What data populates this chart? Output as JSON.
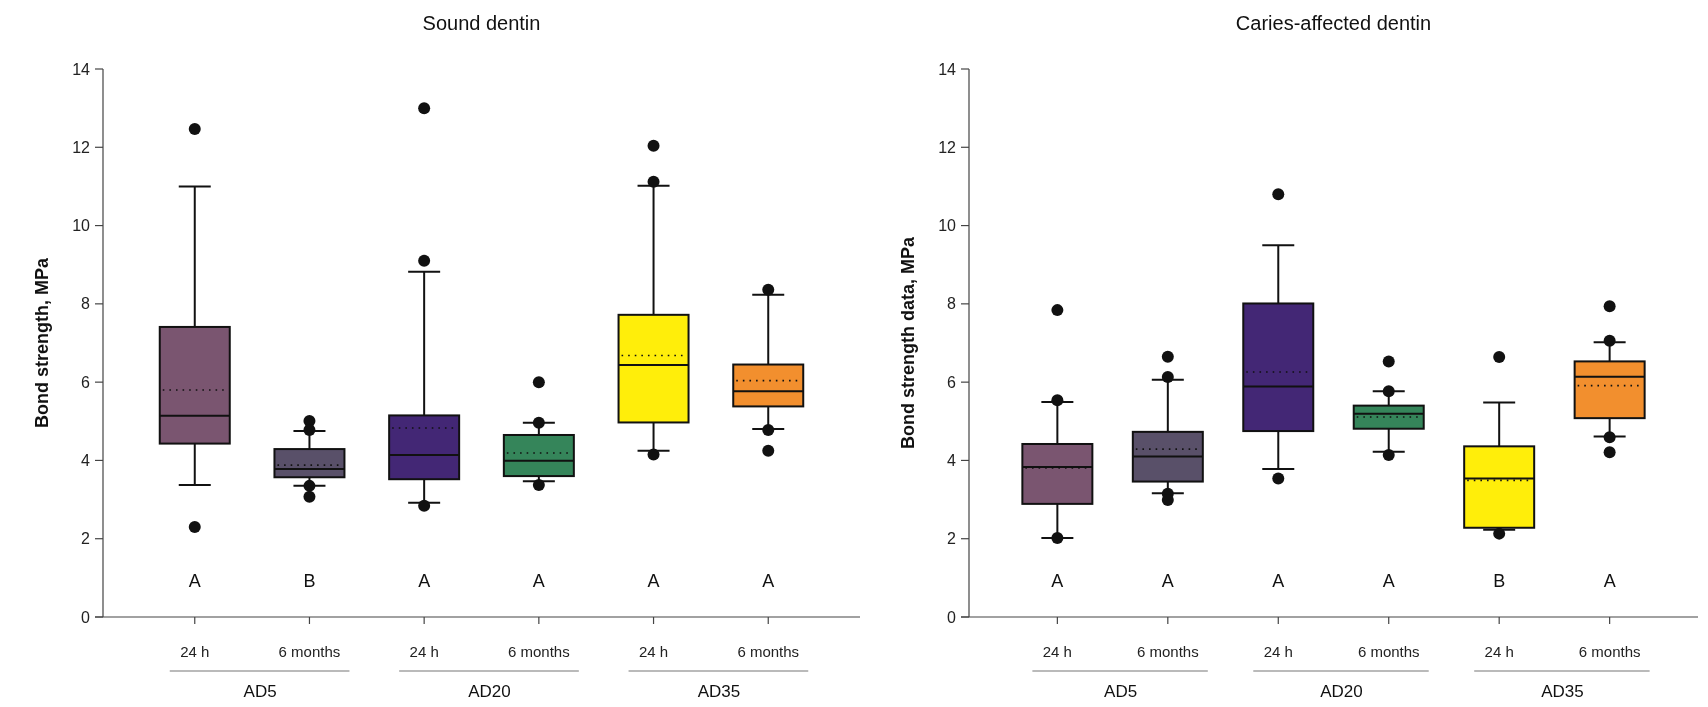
{
  "chart_data": [
    {
      "type": "box",
      "title": "Sound dentin",
      "ylabel": "Bond strength, MPa",
      "categories": [
        "24 h",
        "6 months",
        "24 h",
        "6 months",
        "24 h",
        "6 months"
      ],
      "colors": [
        "#7a5570",
        "#595069",
        "#432775",
        "#35855a",
        "#ffee0a",
        "#f28f2e"
      ],
      "boxes": [
        {
          "low": 3.37,
          "q1": 4.43,
          "median": 5.14,
          "q3": 7.41,
          "high": 11.0,
          "mean": 5.8,
          "outliers": [
            12.47,
            2.3
          ]
        },
        {
          "low": 3.35,
          "q1": 3.57,
          "median": 3.78,
          "q3": 4.29,
          "high": 4.75,
          "mean": 3.88,
          "outliers": [
            5.01,
            4.78,
            3.35,
            3.07
          ]
        },
        {
          "low": 2.92,
          "q1": 3.52,
          "median": 4.14,
          "q3": 5.15,
          "high": 8.82,
          "mean": 4.83,
          "outliers": [
            13.0,
            9.1,
            2.84
          ]
        },
        {
          "low": 3.47,
          "q1": 3.6,
          "median": 3.99,
          "q3": 4.65,
          "high": 4.96,
          "mean": 4.19,
          "outliers": [
            6.0,
            4.96,
            3.37
          ]
        },
        {
          "low": 4.25,
          "q1": 4.97,
          "median": 6.44,
          "q3": 7.72,
          "high": 11.02,
          "mean": 6.68,
          "outliers": [
            12.04,
            11.12,
            4.15
          ]
        },
        {
          "low": 4.8,
          "q1": 5.38,
          "median": 5.77,
          "q3": 6.45,
          "high": 8.23,
          "mean": 6.04,
          "outliers": [
            8.36,
            4.78,
            4.25
          ]
        }
      ],
      "ylim": [
        0,
        14
      ],
      "yticks": [
        0,
        2,
        4,
        6,
        8,
        10,
        12,
        14
      ],
      "annotations": [
        "A",
        "B",
        "A",
        "A",
        "A",
        "A",
        "AD5",
        "AD20",
        "AD35"
      ]
    },
    {
      "type": "box",
      "title": "Caries-affected dentin",
      "ylabel": "Bond strength data, MPa",
      "categories": [
        "24 h",
        "6 months",
        "24 h",
        "6 months",
        "24 h",
        "6 months"
      ],
      "colors": [
        "#7a5570",
        "#595069",
        "#432775",
        "#35855a",
        "#ffee0a",
        "#f28f2e"
      ],
      "boxes": [
        {
          "low": 2.02,
          "q1": 2.89,
          "median": 3.83,
          "q3": 4.42,
          "high": 5.49,
          "mean": 3.81,
          "outliers": [
            7.84,
            5.54,
            2.02
          ]
        },
        {
          "low": 3.16,
          "q1": 3.46,
          "median": 4.1,
          "q3": 4.73,
          "high": 6.06,
          "mean": 4.29,
          "outliers": [
            6.65,
            6.13,
            3.15,
            2.99
          ]
        },
        {
          "low": 3.78,
          "q1": 4.75,
          "median": 5.89,
          "q3": 8.01,
          "high": 9.5,
          "mean": 6.26,
          "outliers": [
            10.8,
            3.54
          ]
        },
        {
          "low": 4.22,
          "q1": 4.81,
          "median": 5.19,
          "q3": 5.4,
          "high": 5.77,
          "mean": 5.11,
          "outliers": [
            6.53,
            5.77,
            4.14
          ]
        },
        {
          "low": 2.23,
          "q1": 2.28,
          "median": 3.54,
          "q3": 4.36,
          "high": 5.48,
          "mean": 3.49,
          "outliers": [
            6.64,
            2.13
          ]
        },
        {
          "low": 4.61,
          "q1": 5.08,
          "median": 6.14,
          "q3": 6.53,
          "high": 7.02,
          "mean": 5.91,
          "outliers": [
            7.94,
            7.06,
            4.59,
            4.21
          ]
        }
      ],
      "ylim": [
        0,
        14
      ],
      "yticks": [
        0,
        2,
        4,
        6,
        8,
        10,
        12,
        14
      ],
      "annotations": [
        "A",
        "A",
        "A",
        "A",
        "B",
        "A",
        "AD5",
        "AD20",
        "AD35"
      ]
    }
  ]
}
